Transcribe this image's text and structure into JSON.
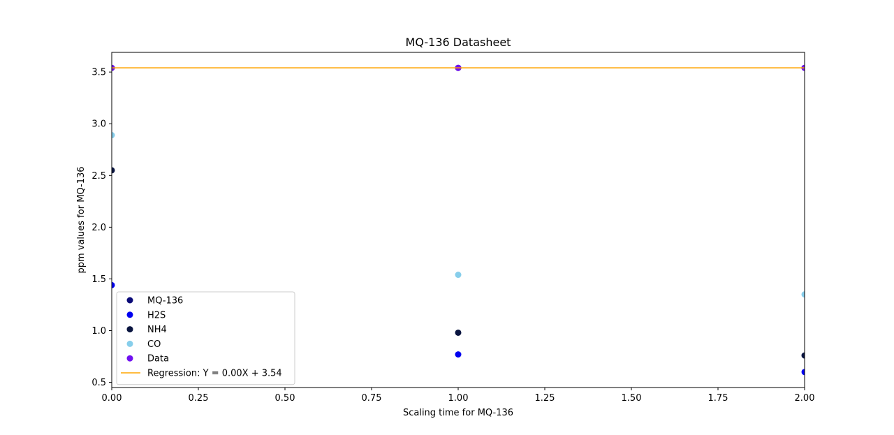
{
  "chart_data": {
    "type": "scatter",
    "title": "MQ-136 Datasheet",
    "xlabel": "Scaling time for MQ-136",
    "ylabel": "ppm values for MQ-136",
    "xlim": [
      0,
      2
    ],
    "ylim": [
      0.45,
      3.69
    ],
    "xticks": [
      0,
      0.25,
      0.5,
      0.75,
      1,
      1.25,
      1.5,
      1.75,
      2
    ],
    "xtick_labels": [
      "0.00",
      "0.25",
      "0.50",
      "0.75",
      "1.00",
      "1.25",
      "1.50",
      "1.75",
      "2.00"
    ],
    "yticks": [
      0.5,
      1.0,
      1.5,
      2.0,
      2.5,
      3.0,
      3.5
    ],
    "ytick_labels": [
      "0.5",
      "1.0",
      "1.5",
      "2.0",
      "2.5",
      "3.0",
      "3.5"
    ],
    "grid": false,
    "legend_position": "lower-left",
    "series": [
      {
        "name": "MQ-136",
        "kind": "scatter",
        "color": "#0a0a78",
        "x": [
          0,
          1,
          2
        ],
        "y": [
          3.54,
          3.54,
          3.54
        ]
      },
      {
        "name": "H2S",
        "kind": "scatter",
        "color": "#0000f0",
        "x": [
          0,
          1,
          2
        ],
        "y": [
          1.44,
          0.77,
          0.6
        ]
      },
      {
        "name": "NH4",
        "kind": "scatter",
        "color": "#0a1540",
        "x": [
          0,
          1,
          2
        ],
        "y": [
          2.55,
          0.98,
          0.76
        ]
      },
      {
        "name": "CO",
        "kind": "scatter",
        "color": "#87ceeb",
        "x": [
          0,
          1,
          2
        ],
        "y": [
          2.89,
          1.54,
          1.35
        ]
      },
      {
        "name": "Data",
        "kind": "scatter",
        "color": "#7010f0",
        "x": [
          0,
          1,
          2
        ],
        "y": [
          3.54,
          3.54,
          3.54
        ]
      },
      {
        "name": "Regression: Y = 0.00X + 3.54",
        "kind": "line",
        "color": "#ffa500",
        "x": [
          0,
          2
        ],
        "y": [
          3.54,
          3.54
        ]
      }
    ]
  }
}
